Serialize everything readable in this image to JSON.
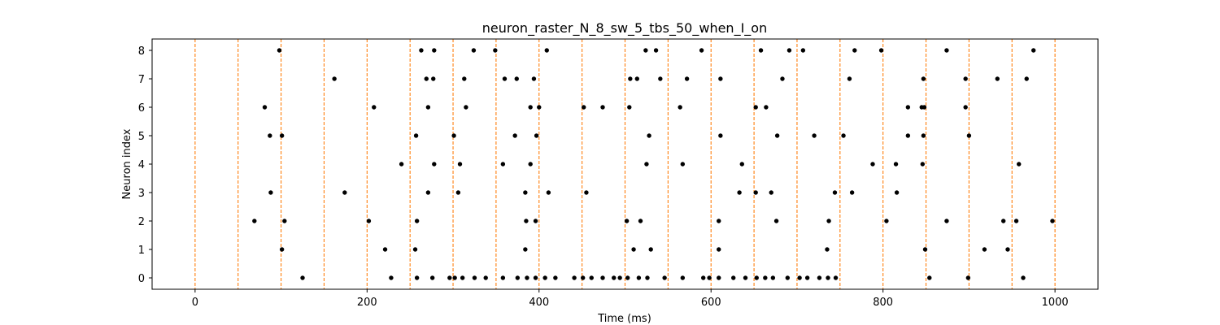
{
  "chart_data": {
    "type": "scatter",
    "title": "neuron_raster_N_8_sw_5_tbs_50_when_I_on",
    "xlabel": "Time (ms)",
    "ylabel": "Neuron index",
    "xlim": [
      -50,
      1050
    ],
    "ylim": [
      -0.4,
      8.4
    ],
    "x_ticks": [
      0,
      200,
      400,
      600,
      800,
      1000
    ],
    "y_ticks": [
      0,
      1,
      2,
      3,
      4,
      5,
      6,
      7,
      8
    ],
    "grid": false,
    "legend": "none",
    "vlines": {
      "x": [
        0,
        50,
        100,
        150,
        200,
        250,
        300,
        350,
        400,
        450,
        500,
        550,
        600,
        650,
        700,
        750,
        800,
        850,
        900,
        950,
        1000
      ],
      "color": "#ff7f0e",
      "style": "dashed"
    },
    "marker_color": "#000000",
    "spikes": [
      {
        "neuron": 0,
        "times": [
          125,
          228,
          258,
          276,
          296,
          302,
          311,
          325,
          338,
          358,
          375,
          386,
          396,
          407,
          419,
          441,
          451,
          461,
          474,
          487,
          494,
          503,
          516,
          526,
          546,
          567,
          591,
          598,
          609,
          626,
          640,
          653,
          663,
          672,
          689,
          703,
          712,
          726,
          736,
          745,
          854,
          899,
          963
        ]
      },
      {
        "neuron": 1,
        "times": [
          101,
          221,
          256,
          384,
          510,
          530,
          609,
          735,
          849,
          918,
          945
        ]
      },
      {
        "neuron": 2,
        "times": [
          69,
          104,
          202,
          258,
          385,
          396,
          502,
          518,
          609,
          676,
          737,
          804,
          874,
          940,
          955,
          997
        ]
      },
      {
        "neuron": 3,
        "times": [
          88,
          174,
          271,
          306,
          384,
          411,
          455,
          633,
          652,
          670,
          744,
          764,
          816
        ]
      },
      {
        "neuron": 4,
        "times": [
          240,
          278,
          308,
          358,
          390,
          525,
          567,
          636,
          788,
          815,
          846,
          958
        ]
      },
      {
        "neuron": 5,
        "times": [
          87,
          101,
          257,
          301,
          372,
          397,
          528,
          611,
          677,
          720,
          754,
          829,
          847,
          900
        ]
      },
      {
        "neuron": 6,
        "times": [
          81,
          208,
          271,
          315,
          390,
          400,
          452,
          474,
          505,
          564,
          652,
          664,
          829,
          845,
          848,
          896
        ]
      },
      {
        "neuron": 7,
        "times": [
          162,
          269,
          277,
          313,
          360,
          374,
          394,
          506,
          514,
          541,
          572,
          611,
          683,
          761,
          847,
          896,
          933,
          967
        ]
      },
      {
        "neuron": 8,
        "times": [
          98,
          263,
          278,
          324,
          349,
          409,
          524,
          536,
          589,
          658,
          691,
          707,
          767,
          798,
          874,
          975
        ]
      }
    ]
  }
}
